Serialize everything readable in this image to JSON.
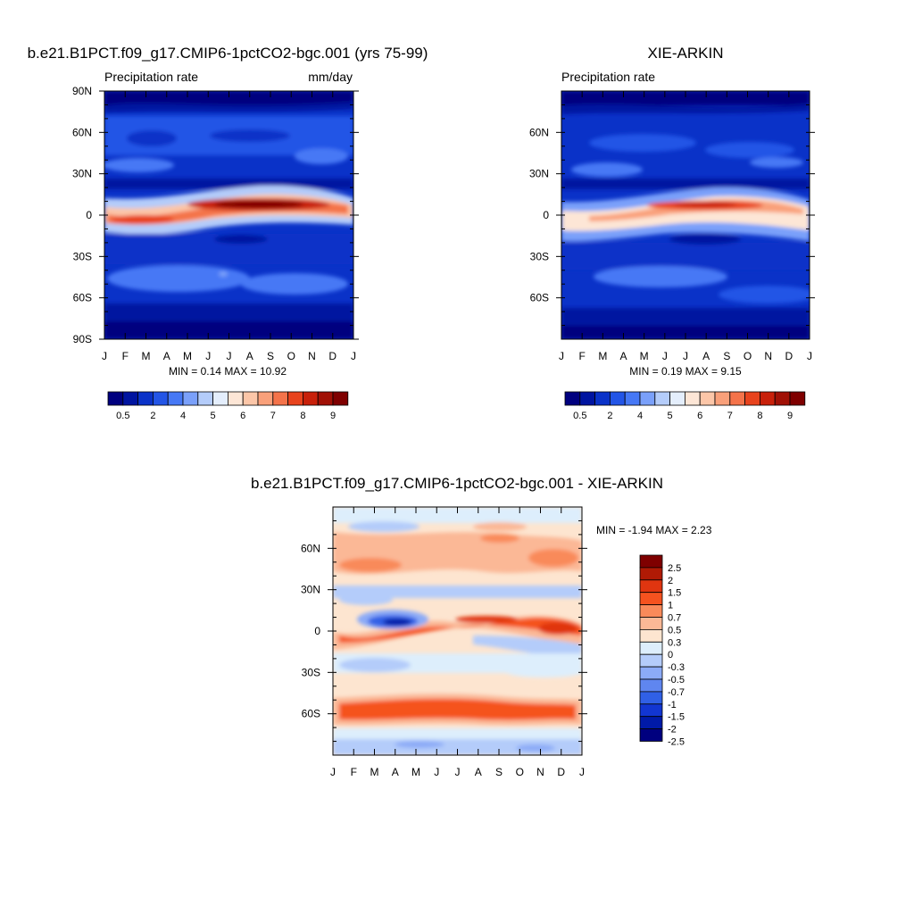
{
  "chart_data": [
    {
      "type": "heatmap",
      "title": "b.e21.B1PCT.f09_g17.CMIP6-1pctCO2-bgc.001 (yrs 75-99)",
      "left_label": "Precipitation rate",
      "right_label": "mm/day",
      "x_tick_labels": [
        "J",
        "F",
        "M",
        "A",
        "M",
        "J",
        "J",
        "A",
        "S",
        "O",
        "N",
        "D",
        "J"
      ],
      "y_tick_labels": [
        {
          "lat": 90,
          "label": "90N"
        },
        {
          "lat": 60,
          "label": "60N"
        },
        {
          "lat": 30,
          "label": "30N"
        },
        {
          "lat": 0,
          "label": "0"
        },
        {
          "lat": -30,
          "label": "30S"
        },
        {
          "lat": -60,
          "label": "60S"
        },
        {
          "lat": -90,
          "label": "90S"
        }
      ],
      "ylim": [
        -90,
        90
      ],
      "stats": "MIN =   0.14 MAX =  10.92",
      "colorbar": {
        "orientation": "horizontal",
        "colors": [
          "#00007f",
          "#0014a0",
          "#0a32c8",
          "#2355e6",
          "#4678f5",
          "#7aa0fa",
          "#b4ccfa",
          "#e4eefc",
          "#fde6d6",
          "#fcc6a8",
          "#f9a07a",
          "#f4734a",
          "#e8431d",
          "#c8200a",
          "#a01005",
          "#7f0000"
        ],
        "labels": [
          "0.5",
          "2",
          "4",
          "5",
          "6",
          "7",
          "8",
          "9"
        ]
      }
    },
    {
      "type": "heatmap",
      "title": "XIE-ARKIN",
      "left_label": "Precipitation rate",
      "x_tick_labels": [
        "J",
        "F",
        "M",
        "A",
        "M",
        "J",
        "J",
        "A",
        "S",
        "O",
        "N",
        "D",
        "J"
      ],
      "y_tick_labels": [
        {
          "lat": 60,
          "label": "60N"
        },
        {
          "lat": 30,
          "label": "30N"
        },
        {
          "lat": 0,
          "label": "0"
        },
        {
          "lat": -30,
          "label": "30S"
        },
        {
          "lat": -60,
          "label": "60S"
        }
      ],
      "ylim": [
        -90,
        90
      ],
      "stats": "MIN =   0.19 MAX =   9.15",
      "colorbar": {
        "orientation": "horizontal",
        "colors": [
          "#00007f",
          "#0014a0",
          "#0a32c8",
          "#2355e6",
          "#4678f5",
          "#7aa0fa",
          "#b4ccfa",
          "#e4eefc",
          "#fde6d6",
          "#fcc6a8",
          "#f9a07a",
          "#f4734a",
          "#e8431d",
          "#c8200a",
          "#a01005",
          "#7f0000"
        ],
        "labels": [
          "0.5",
          "2",
          "4",
          "5",
          "6",
          "7",
          "8",
          "9"
        ]
      }
    },
    {
      "type": "heatmap",
      "title": "b.e21.B1PCT.f09_g17.CMIP6-1pctCO2-bgc.001 - XIE-ARKIN",
      "x_tick_labels": [
        "J",
        "F",
        "M",
        "A",
        "M",
        "J",
        "J",
        "A",
        "S",
        "O",
        "N",
        "D",
        "J"
      ],
      "y_tick_labels": [
        {
          "lat": 60,
          "label": "60N"
        },
        {
          "lat": 30,
          "label": "30N"
        },
        {
          "lat": 0,
          "label": "0"
        },
        {
          "lat": -30,
          "label": "30S"
        },
        {
          "lat": -60,
          "label": "60S"
        }
      ],
      "ylim": [
        -90,
        90
      ],
      "stats": "MIN =  -1.94 MAX =   2.23",
      "colorbar": {
        "orientation": "vertical",
        "colors": [
          "#7f0000",
          "#b01a05",
          "#e03510",
          "#f5521f",
          "#f98a5a",
          "#fbb896",
          "#fde5d0",
          "#ddeefc",
          "#b4ccfa",
          "#8cabf7",
          "#5f86f0",
          "#3060e6",
          "#1236d2",
          "#001aa8",
          "#00007f"
        ],
        "labels": [
          "2.5",
          "2",
          "1.5",
          "1",
          "0.7",
          "0.5",
          "0.3",
          "0",
          "-0.3",
          "-0.5",
          "-0.7",
          "-1",
          "-1.5",
          "-2",
          "-2.5"
        ]
      }
    }
  ]
}
